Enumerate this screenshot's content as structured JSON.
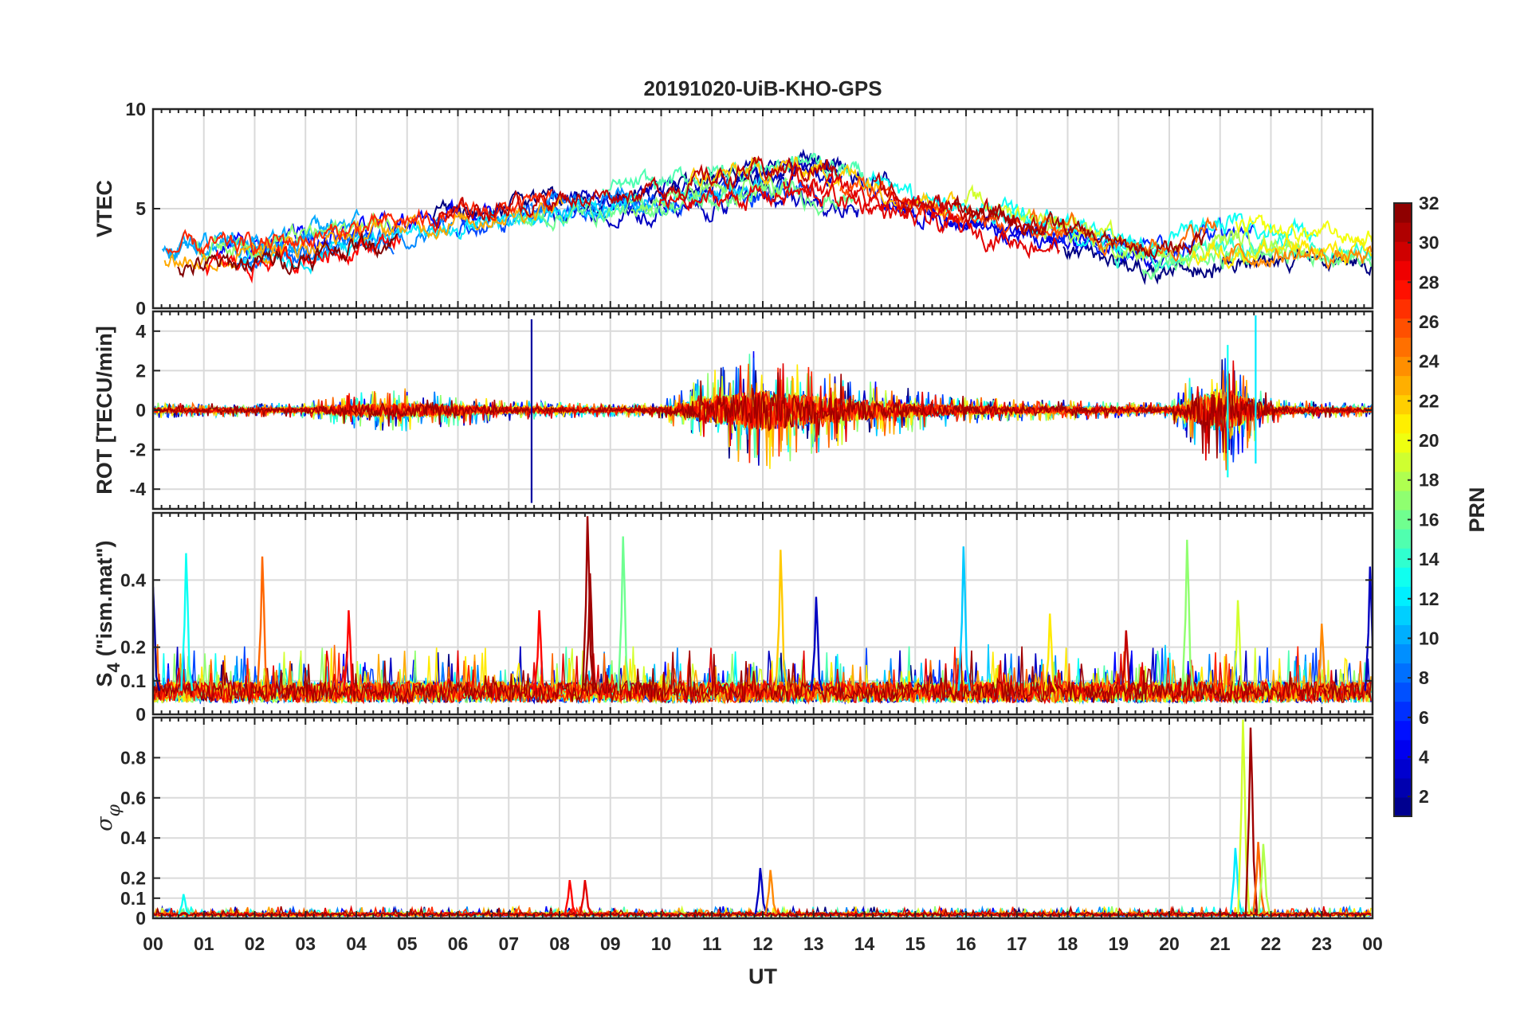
{
  "chart_data": {
    "type": "line",
    "title": "20191020-UiB-KHO-GPS",
    "xlabel": "UT",
    "x_unit": "hours UT",
    "x_range": [
      0,
      24
    ],
    "x_ticks": [
      0,
      1,
      2,
      3,
      4,
      5,
      6,
      7,
      8,
      9,
      10,
      11,
      12,
      13,
      14,
      15,
      16,
      17,
      18,
      19,
      20,
      21,
      22,
      23,
      24
    ],
    "x_tick_labels": [
      "00",
      "01",
      "02",
      "03",
      "04",
      "05",
      "06",
      "07",
      "08",
      "09",
      "10",
      "11",
      "12",
      "13",
      "14",
      "15",
      "16",
      "17",
      "18",
      "19",
      "20",
      "21",
      "22",
      "23",
      "00"
    ],
    "grid": true,
    "series_color_by": "PRN",
    "panels": [
      {
        "id": "vtec",
        "ylabel": "VTEC",
        "ylim": [
          0,
          10
        ],
        "yticks": [
          0,
          5,
          10
        ],
        "ytick_labels": [
          "0",
          "5",
          "10"
        ],
        "ygrid": [
          0,
          5,
          10
        ],
        "profile": {
          "hours": [
            0,
            1,
            2,
            3,
            4,
            5,
            6,
            7,
            8,
            9,
            10,
            11,
            12,
            13,
            14,
            15,
            16,
            17,
            18,
            19,
            20,
            21,
            22,
            23,
            24
          ],
          "typical": [
            2.6,
            2.6,
            2.8,
            3.1,
            3.6,
            4.0,
            4.3,
            4.7,
            5.1,
            5.3,
            5.6,
            6.0,
            6.3,
            6.4,
            5.9,
            5.0,
            4.5,
            4.0,
            3.6,
            2.8,
            2.6,
            3.4,
            3.3,
            3.2,
            3.0
          ],
          "spread": [
            0.9,
            0.9,
            0.9,
            0.9,
            0.8,
            0.8,
            0.8,
            0.8,
            0.7,
            0.7,
            0.8,
            0.9,
            1.0,
            1.1,
            1.0,
            1.0,
            0.9,
            0.9,
            0.9,
            0.7,
            0.7,
            1.2,
            0.8,
            0.8,
            0.7
          ]
        }
      },
      {
        "id": "rot",
        "ylabel": "ROT [TECU/min]",
        "ylim": [
          -5,
          5
        ],
        "yticks": [
          -4,
          -2,
          0,
          2,
          4
        ],
        "ytick_labels": [
          "-4",
          "-2",
          "0",
          "2",
          "4"
        ],
        "ygrid": [
          -4,
          -2,
          0,
          2,
          4
        ],
        "profile": {
          "hours": [
            0,
            1,
            2,
            3,
            4,
            5,
            6,
            7,
            8,
            9,
            10,
            11,
            12,
            13,
            14,
            15,
            16,
            17,
            18,
            19,
            20,
            21,
            22,
            23,
            24
          ],
          "amplitude": [
            0.3,
            0.25,
            0.25,
            0.3,
            0.7,
            0.8,
            0.6,
            0.4,
            0.3,
            0.25,
            0.3,
            1.5,
            2.3,
            1.6,
            1.1,
            0.8,
            0.5,
            0.4,
            0.4,
            0.3,
            0.3,
            2.5,
            0.5,
            0.3,
            0.25
          ]
        },
        "spikes": [
          {
            "x": 7.45,
            "min": -4.7,
            "max": 4.6,
            "prn": 2
          },
          {
            "x": 21.15,
            "min": -3.4,
            "max": 3.3,
            "prn": 13
          },
          {
            "x": 21.7,
            "min": -2.7,
            "max": 4.8,
            "prn": 12
          }
        ]
      },
      {
        "id": "s4",
        "ylabel": "S4 (\"ism.mat\")",
        "ylabel_main": "S",
        "ylabel_sub": "4",
        "ylabel_rest": "(\"ism.mat\")",
        "ylim": [
          0,
          0.6
        ],
        "yticks": [
          0,
          0.1,
          0.2,
          0.4
        ],
        "ytick_labels": [
          "0",
          "0.1",
          "0.2",
          "0.4"
        ],
        "ygrid": [
          0.1,
          0.2,
          0.4
        ],
        "baseline": 0.07,
        "spikes": [
          {
            "x": 0.0,
            "peak": 0.38,
            "prn": 2
          },
          {
            "x": 0.65,
            "peak": 0.48,
            "prn": 13
          },
          {
            "x": 2.15,
            "peak": 0.47,
            "prn": 25
          },
          {
            "x": 3.85,
            "peak": 0.31,
            "prn": 28
          },
          {
            "x": 7.6,
            "peak": 0.31,
            "prn": 28
          },
          {
            "x": 8.55,
            "peak": 0.59,
            "prn": 31
          },
          {
            "x": 8.6,
            "peak": 0.42,
            "prn": 31
          },
          {
            "x": 9.25,
            "peak": 0.53,
            "prn": 16
          },
          {
            "x": 12.35,
            "peak": 0.49,
            "prn": 22
          },
          {
            "x": 13.05,
            "peak": 0.35,
            "prn": 3
          },
          {
            "x": 15.95,
            "peak": 0.5,
            "prn": 11
          },
          {
            "x": 17.65,
            "peak": 0.3,
            "prn": 21
          },
          {
            "x": 19.15,
            "peak": 0.25,
            "prn": 30
          },
          {
            "x": 20.35,
            "peak": 0.52,
            "prn": 17
          },
          {
            "x": 21.35,
            "peak": 0.34,
            "prn": 19
          },
          {
            "x": 23.0,
            "peak": 0.27,
            "prn": 24
          },
          {
            "x": 23.95,
            "peak": 0.44,
            "prn": 3
          }
        ]
      },
      {
        "id": "sigma_phi",
        "ylabel": "σ φ",
        "ylabel_main": "σ",
        "ylabel_sub": "φ",
        "ylim": [
          0,
          1
        ],
        "yticks": [
          0,
          0.1,
          0.2,
          0.4,
          0.6,
          0.8
        ],
        "ytick_labels": [
          "0",
          "0.1",
          "0.2",
          "0.4",
          "0.6",
          "0.8"
        ],
        "ygrid": [
          0.1,
          0.2,
          0.4,
          0.6,
          0.8
        ],
        "baseline": 0.02,
        "spikes": [
          {
            "x": 0.6,
            "peak": 0.12,
            "prn": 13
          },
          {
            "x": 8.2,
            "peak": 0.19,
            "prn": 28
          },
          {
            "x": 8.5,
            "peak": 0.19,
            "prn": 29
          },
          {
            "x": 11.95,
            "peak": 0.25,
            "prn": 3
          },
          {
            "x": 12.15,
            "peak": 0.24,
            "prn": 24
          },
          {
            "x": 21.3,
            "peak": 0.35,
            "prn": 12
          },
          {
            "x": 21.45,
            "peak": 0.99,
            "prn": 19
          },
          {
            "x": 21.6,
            "peak": 0.95,
            "prn": 31
          },
          {
            "x": 21.75,
            "peak": 0.38,
            "prn": 25
          },
          {
            "x": 21.85,
            "peak": 0.37,
            "prn": 18
          }
        ]
      }
    ],
    "colorbar": {
      "label": "PRN",
      "range": [
        1,
        32
      ],
      "ticks": [
        2,
        4,
        6,
        8,
        10,
        12,
        14,
        16,
        18,
        20,
        22,
        24,
        26,
        28,
        30,
        32
      ],
      "tick_labels": [
        "2",
        "4",
        "6",
        "8",
        "10",
        "12",
        "14",
        "16",
        "18",
        "20",
        "22",
        "24",
        "26",
        "28",
        "30",
        "32"
      ],
      "colormap": "jet",
      "levels": 32
    }
  }
}
